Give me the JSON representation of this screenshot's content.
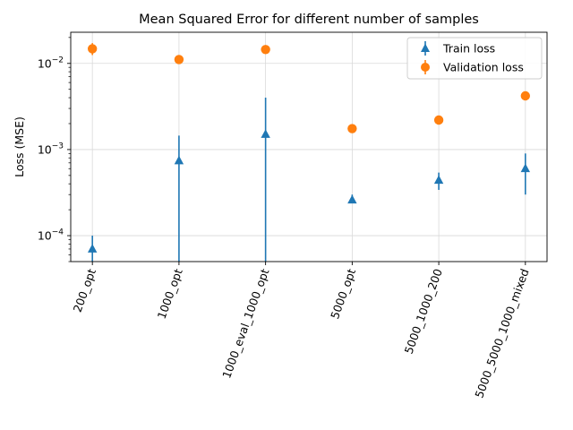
{
  "chart_data": {
    "type": "scatter",
    "title": "Mean Squared Error for different number of samples",
    "xlabel": "",
    "ylabel": "Loss (MSE)",
    "yscale": "log",
    "ylim": [
      5e-05,
      0.023
    ],
    "y_ticks": [
      {
        "value": 0.0001,
        "base": "10",
        "exp": "−4"
      },
      {
        "value": 0.001,
        "base": "10",
        "exp": "−3"
      },
      {
        "value": 0.01,
        "base": "10",
        "exp": "−2"
      }
    ],
    "grid": true,
    "legend_position": "top-right",
    "categories": [
      "200_opt",
      "1000_opt",
      "1000_eval_1000_opt",
      "5000_opt",
      "5000_1000_200",
      "5000_5000_1000_mixed"
    ],
    "series": [
      {
        "name": "Train loss",
        "marker": "triangle",
        "color": "#1f77b4",
        "values": [
          7e-05,
          0.00074,
          0.0015,
          0.00026,
          0.00044,
          0.0006
        ],
        "err_low": [
          5e-05,
          5e-05,
          5e-05,
          0.00024,
          0.00034,
          0.0003
        ],
        "err_high": [
          0.0001,
          0.00145,
          0.004,
          0.0003,
          0.00054,
          0.0009
        ]
      },
      {
        "name": "Validation loss",
        "marker": "circle",
        "color": "#ff7f0e",
        "values": [
          0.0148,
          0.0111,
          0.0145,
          0.00175,
          0.0022,
          0.0042
        ],
        "err_low": [
          0.0125,
          0.0108,
          0.0142,
          0.0017,
          0.00215,
          0.0041
        ],
        "err_high": [
          0.0172,
          0.0114,
          0.0148,
          0.0018,
          0.00225,
          0.0043
        ]
      }
    ]
  }
}
